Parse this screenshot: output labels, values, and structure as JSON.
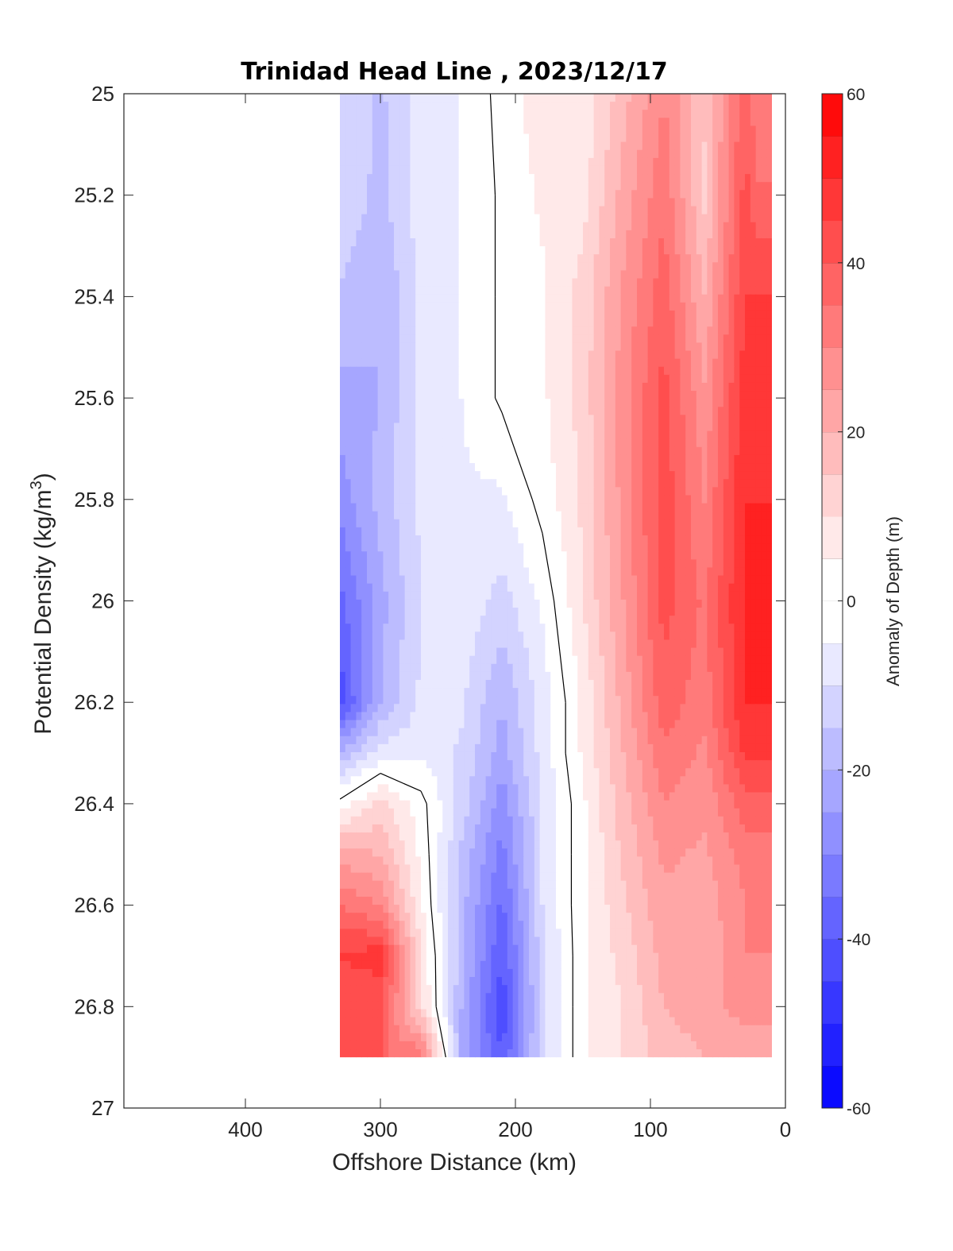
{
  "chart_data": {
    "type": "heatmap",
    "title": "Trinidad Head Line , 2023/12/17",
    "xlabel": "Offshore Distance (km)",
    "ylabel_prefix": "Potential Density (kg/m",
    "ylabel_sup": "3",
    "ylabel_suffix": ")",
    "colorbar_label": "Anomaly of Depth (m)",
    "xlim": [
      490,
      0
    ],
    "x_reversed": true,
    "ylim": [
      25,
      27
    ],
    "y_reversed": true,
    "x_ticks": [
      400,
      300,
      200,
      100,
      0
    ],
    "x_tick_labels": [
      "400",
      "300",
      "200",
      "100",
      "0"
    ],
    "y_ticks": [
      25,
      25.2,
      25.4,
      25.6,
      25.8,
      26,
      26.2,
      26.4,
      26.6,
      26.8,
      27
    ],
    "y_tick_labels": [
      "25",
      "25.2",
      "25.4",
      "25.6",
      "25.8",
      "26",
      "26.2",
      "26.4",
      "26.6",
      "26.8",
      "27"
    ],
    "colorbar": {
      "range": [
        -60,
        60
      ],
      "step": 5,
      "ticks": [
        60,
        40,
        20,
        0,
        -20,
        -40,
        -60
      ],
      "tick_labels": [
        "60",
        "40",
        "20",
        "0",
        "-20",
        "-40",
        "-60"
      ],
      "colormap": "blue-white-red",
      "low_color": "#0000ff",
      "mid_color": "#ffffff",
      "high_color": "#ff0000"
    },
    "grid": false,
    "contour_zero_line": true,
    "contour_line_color": "#000000",
    "data_extent_x": [
      330,
      10
    ],
    "data_extent_y": [
      25,
      26.9
    ],
    "grid_x": [
      330,
      300,
      270,
      240,
      210,
      180,
      150,
      120,
      90,
      60,
      30,
      20
    ],
    "grid_y": [
      25,
      25.2,
      25.4,
      25.6,
      25.8,
      26,
      26.2,
      26.3,
      26.4,
      26.5,
      26.6,
      26.7,
      26.8,
      26.9
    ],
    "values": [
      [
        -10,
        -16,
        -8,
        -5,
        2,
        8,
        6,
        18,
        30,
        16,
        38,
        30
      ],
      [
        -10,
        -17,
        -7,
        -5,
        1,
        6,
        8,
        22,
        34,
        14,
        42,
        36
      ],
      [
        -16,
        -20,
        -9,
        -5,
        1,
        4,
        12,
        26,
        38,
        20,
        45,
        45
      ],
      [
        -22,
        -20,
        -8,
        -5,
        1,
        4,
        12,
        28,
        42,
        26,
        48,
        48
      ],
      [
        -28,
        -18,
        -9,
        -6,
        -6,
        2,
        11,
        27,
        43,
        30,
        50,
        50
      ],
      [
        -37,
        -22,
        -10,
        -6,
        -12,
        -4,
        10,
        25,
        42,
        34,
        51,
        51
      ],
      [
        -43,
        -20,
        -9,
        -9,
        -20,
        -8,
        6,
        22,
        38,
        32,
        50,
        50
      ],
      [
        -20,
        -8,
        -6,
        -11,
        -22,
        -8,
        6,
        20,
        34,
        29,
        46,
        46
      ],
      [
        2,
        12,
        2,
        -12,
        -28,
        -10,
        4,
        18,
        30,
        26,
        38,
        38
      ],
      [
        22,
        20,
        4,
        -16,
        -32,
        -10,
        4,
        16,
        26,
        24,
        32,
        32
      ],
      [
        35,
        30,
        6,
        -18,
        -36,
        -10,
        4,
        14,
        24,
        22,
        30,
        30
      ],
      [
        45,
        48,
        10,
        -18,
        -40,
        -12,
        4,
        12,
        22,
        21,
        30,
        30
      ],
      [
        42,
        40,
        12,
        -20,
        -44,
        -12,
        4,
        10,
        20,
        22,
        28,
        28
      ],
      [
        null,
        null,
        35,
        -22,
        -40,
        -12,
        4,
        10,
        18,
        20,
        20,
        20
      ]
    ]
  }
}
